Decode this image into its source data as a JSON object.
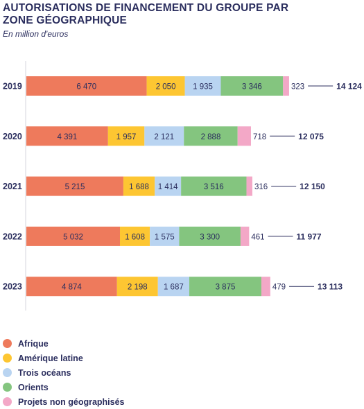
{
  "title": "AUTORISATIONS DE FINANCEMENT DU GROUPE PAR ZONE GÉOGRAPHIQUE",
  "subtitle": "En million d'euros",
  "colors": {
    "text": "#2b2e5e",
    "axis": "#d6d6de"
  },
  "chart_data": {
    "type": "bar",
    "orientation": "horizontal",
    "stacked": true,
    "title": "AUTORISATIONS DE FINANCEMENT DU GROUPE PAR ZONE GÉOGRAPHIQUE",
    "subtitle": "En million d'euros",
    "categories": [
      "2019",
      "2020",
      "2021",
      "2022",
      "2023"
    ],
    "series": [
      {
        "name": "Afrique",
        "color": "#ee7a5c",
        "values": [
          6470,
          4391,
          5215,
          5032,
          4874
        ],
        "labels": [
          "6 470",
          "4 391",
          "5 215",
          "5 032",
          "4 874"
        ]
      },
      {
        "name": "Amérique latine",
        "color": "#fdc632",
        "values": [
          2050,
          1957,
          1688,
          1608,
          2198
        ],
        "labels": [
          "2 050",
          "1 957",
          "1 688",
          "1 608",
          "2 198"
        ]
      },
      {
        "name": "Trois océans",
        "color": "#b9d4f1",
        "values": [
          1935,
          2121,
          1414,
          1575,
          1687
        ],
        "labels": [
          "1 935",
          "2 121",
          "1 414",
          "1 575",
          "1 687"
        ]
      },
      {
        "name": "Orients",
        "color": "#84c57f",
        "values": [
          3346,
          2888,
          3516,
          3300,
          3875
        ],
        "labels": [
          "3 346",
          "2 888",
          "3 516",
          "3 300",
          "3 875"
        ]
      },
      {
        "name": "Projets non géographisés",
        "color": "#f3a8c7",
        "values": [
          323,
          718,
          316,
          461,
          479
        ],
        "labels": [
          "323",
          "718",
          "316",
          "461",
          "479"
        ]
      }
    ],
    "totals": [
      14124,
      12075,
      12150,
      11977,
      13113
    ],
    "total_labels": [
      "14 124",
      "12 075",
      "12 150",
      "11 977",
      "13 113"
    ],
    "grid": false,
    "legend_position": "bottom-left"
  }
}
